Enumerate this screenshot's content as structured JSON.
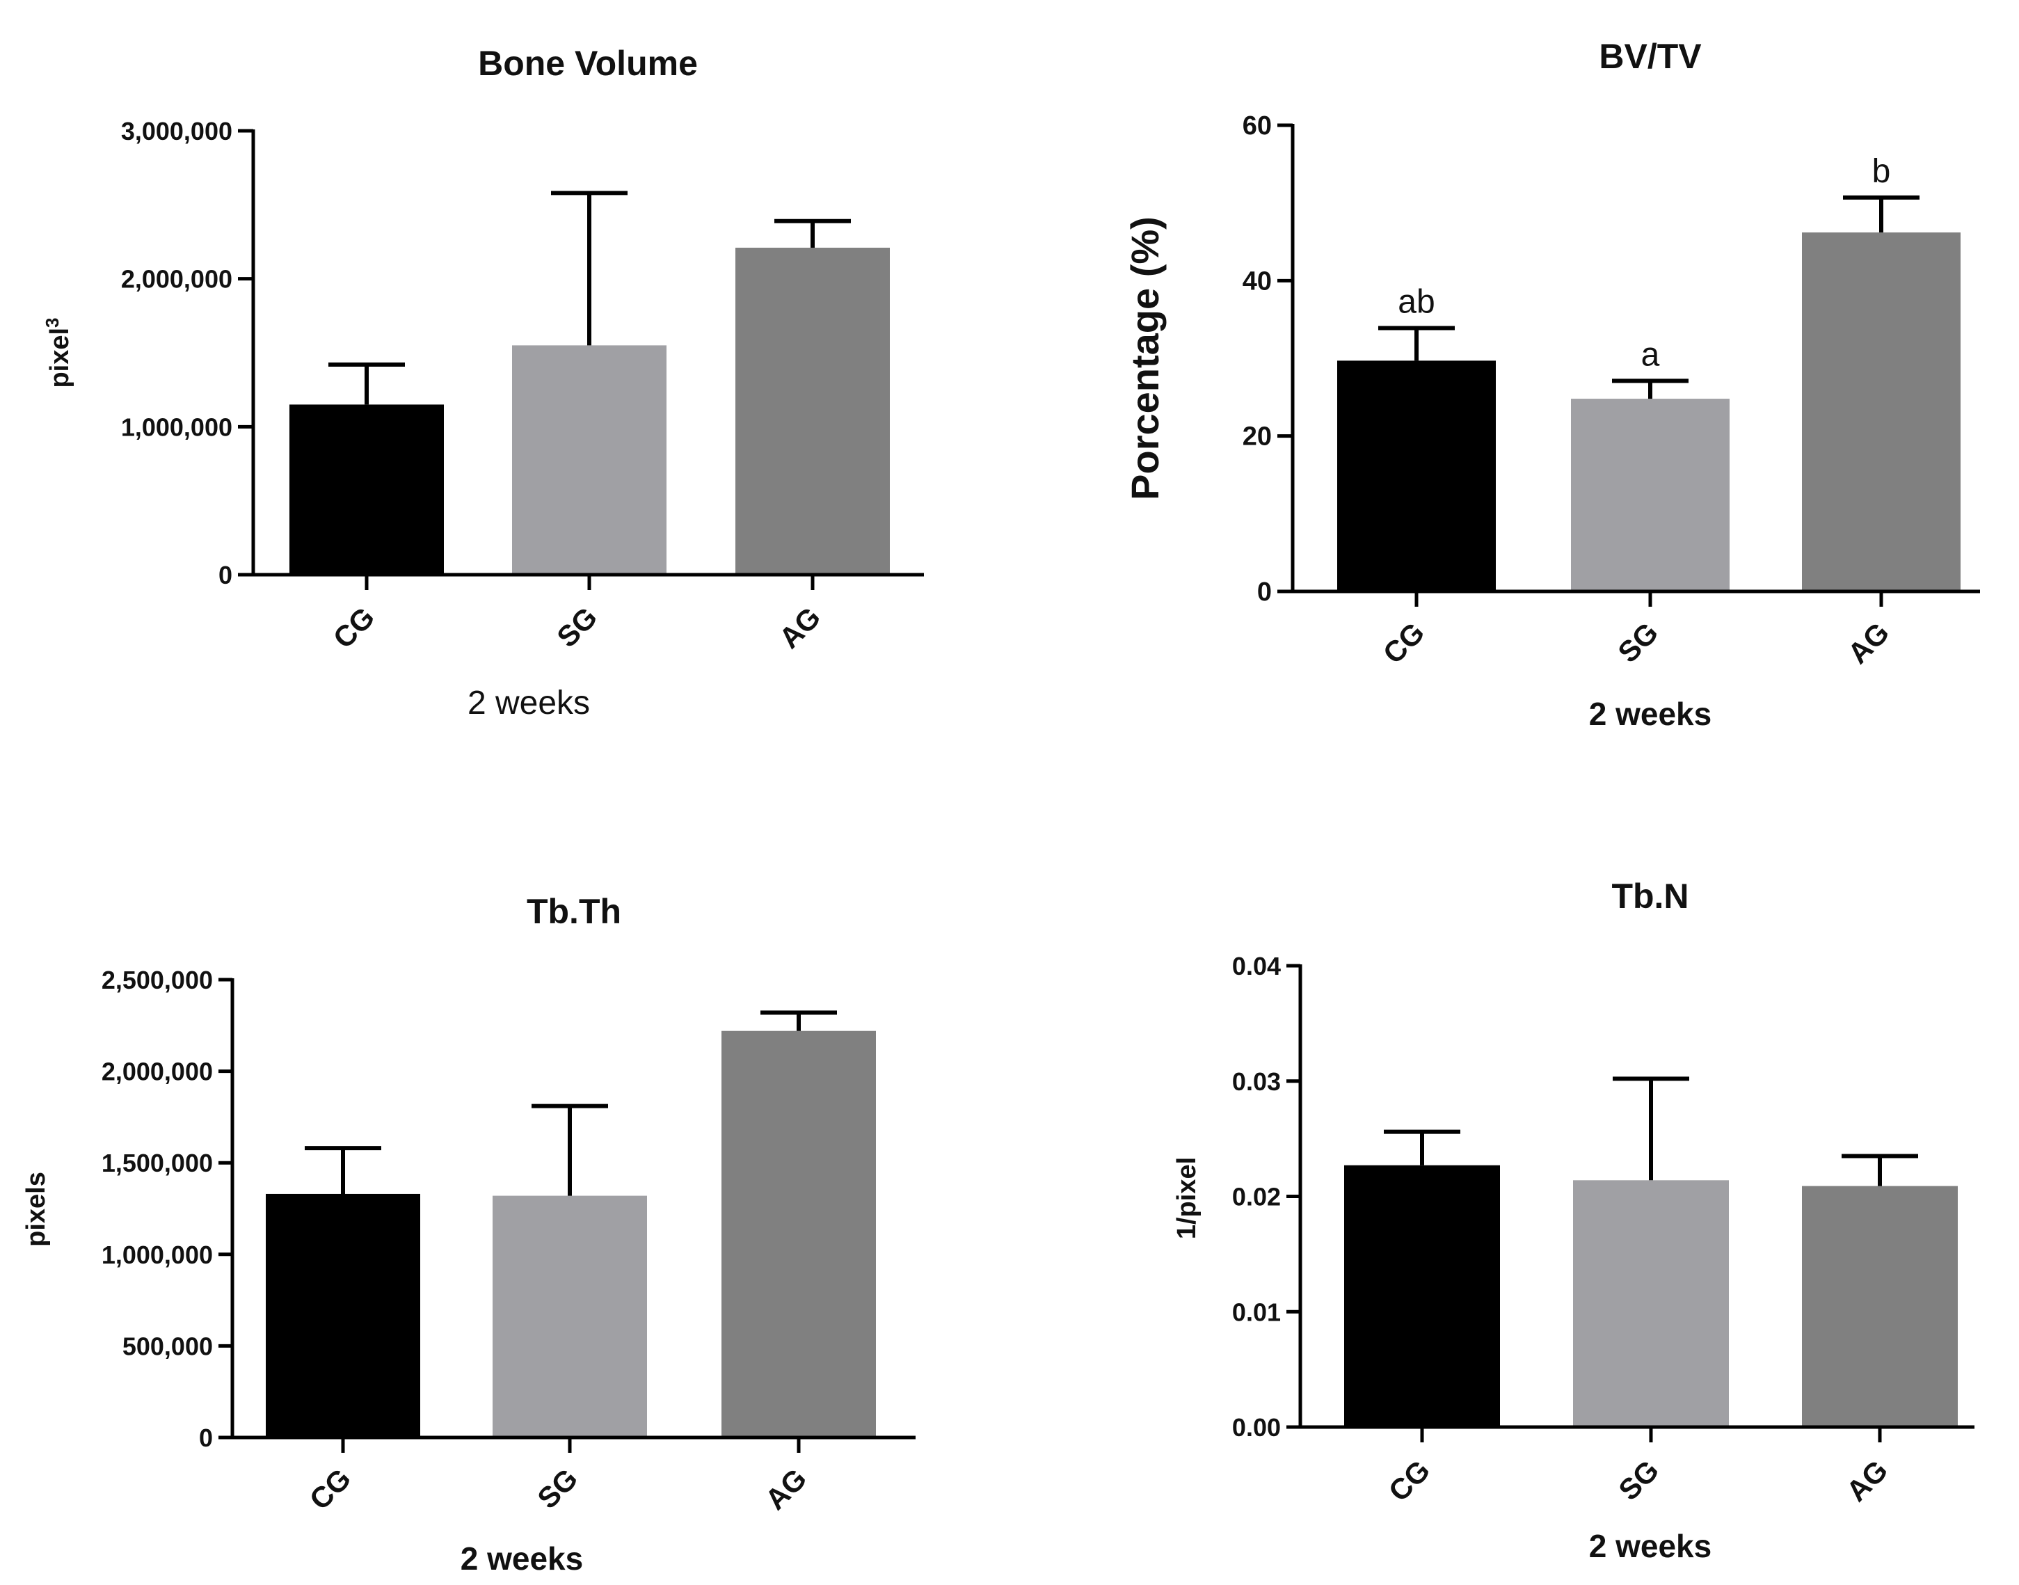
{
  "chart_data": [
    {
      "type": "bar",
      "title": "Bone Volume",
      "categories": [
        "CG",
        "SG",
        "AG"
      ],
      "values": [
        1150000,
        1550000,
        2210000
      ],
      "errors": [
        270000,
        1030000,
        180000
      ],
      "colors": [
        "#000000",
        "#a0a0a4",
        "#808080"
      ],
      "xlabel": "2 weeks",
      "ylabel": "pixel",
      "ylabel_superscript": "3",
      "ylim": [
        0,
        3000000
      ],
      "yticks": [
        0,
        1000000,
        2000000,
        3000000
      ],
      "ytick_labels": [
        "0",
        "1,000,000",
        "2,000,000",
        "3,000,000"
      ],
      "annotations": [],
      "grid": false
    },
    {
      "type": "bar",
      "title": "BV/TV",
      "categories": [
        "CG",
        "SG",
        "AG"
      ],
      "values": [
        29.7,
        24.8,
        46.2
      ],
      "errors": [
        4.2,
        2.3,
        4.5
      ],
      "colors": [
        "#000000",
        "#a0a0a4",
        "#808080"
      ],
      "xlabel": "2 weeks",
      "ylabel": "Porcentage (%)",
      "ylim": [
        0,
        60
      ],
      "yticks": [
        0,
        20,
        40,
        60
      ],
      "ytick_labels": [
        "0",
        "20",
        "40",
        "60"
      ],
      "annotations": [
        "ab",
        "a",
        "b"
      ],
      "grid": false
    },
    {
      "type": "bar",
      "title": "Tb.Th",
      "categories": [
        "CG",
        "SG",
        "AG"
      ],
      "values": [
        1330000,
        1320000,
        2220000
      ],
      "errors": [
        250000,
        490000,
        100000
      ],
      "colors": [
        "#000000",
        "#a0a0a4",
        "#808080"
      ],
      "xlabel": "2 weeks",
      "ylabel": "pixels",
      "ylim": [
        0,
        2500000
      ],
      "yticks": [
        0,
        500000,
        1000000,
        1500000,
        2000000,
        2500000
      ],
      "ytick_labels": [
        "0",
        "500,000",
        "1,000,000",
        "1,500,000",
        "2,000,000",
        "2,500,000"
      ],
      "annotations": [],
      "grid": false
    },
    {
      "type": "bar",
      "title": "Tb.N",
      "categories": [
        "CG",
        "SG",
        "AG"
      ],
      "values": [
        0.0227,
        0.0214,
        0.0209
      ],
      "errors": [
        0.0029,
        0.0088,
        0.0026
      ],
      "colors": [
        "#000000",
        "#a0a0a4",
        "#808080"
      ],
      "xlabel": "2 weeks",
      "ylabel": "1/pixel",
      "ylim": [
        0,
        0.04
      ],
      "yticks": [
        0,
        0.01,
        0.02,
        0.03,
        0.04
      ],
      "ytick_labels": [
        "0.00",
        "0.01",
        "0.02",
        "0.03",
        "0.04"
      ],
      "annotations": [],
      "grid": false
    }
  ]
}
